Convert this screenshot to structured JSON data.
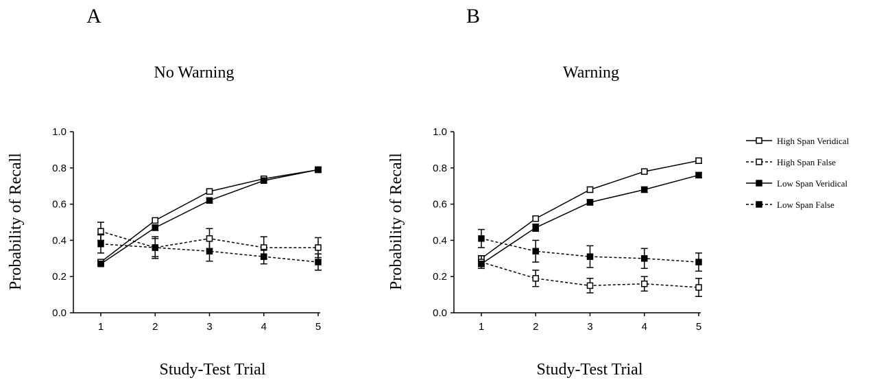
{
  "chart_data": [
    {
      "type": "line",
      "panel_letter": "A",
      "title": "No Warning",
      "xlabel": "Study-Test Trial",
      "ylabel": "Probability of Recall",
      "x": [
        1,
        2,
        3,
        4,
        5
      ],
      "xticks": [
        "1",
        "2",
        "3",
        "4",
        "5"
      ],
      "yticks": [
        "0.0",
        "0.2",
        "0.4",
        "0.6",
        "0.8",
        "1.0"
      ],
      "ylim": [
        0,
        1
      ],
      "grid": false,
      "series": [
        {
          "name": "High Span Veridical",
          "values": [
            0.28,
            0.51,
            0.67,
            0.74,
            0.79
          ],
          "err": [
            0.01,
            0.01,
            0.01,
            0.01,
            0.015
          ],
          "marker": "open-square",
          "line": "solid"
        },
        {
          "name": "High Span False",
          "values": [
            0.45,
            0.36,
            0.41,
            0.36,
            0.36
          ],
          "err": [
            0.05,
            0.05,
            0.055,
            0.06,
            0.055
          ],
          "marker": "open-square",
          "line": "dashed"
        },
        {
          "name": "Low Span Veridical",
          "values": [
            0.27,
            0.47,
            0.62,
            0.73,
            0.79
          ],
          "err": [
            0.01,
            0.015,
            0.015,
            0.01,
            0.01
          ],
          "marker": "filled-square",
          "line": "solid"
        },
        {
          "name": "Low Span False",
          "values": [
            0.38,
            0.36,
            0.34,
            0.31,
            0.28
          ],
          "err": [
            0.05,
            0.06,
            0.055,
            0.04,
            0.045
          ],
          "marker": "filled-square",
          "line": "dashed"
        }
      ]
    },
    {
      "type": "line",
      "panel_letter": "B",
      "title": "Warning",
      "xlabel": "Study-Test Trial",
      "ylabel": "Probability of Recall",
      "x": [
        1,
        2,
        3,
        4,
        5
      ],
      "xticks": [
        "1",
        "2",
        "3",
        "4",
        "5"
      ],
      "yticks": [
        "0.0",
        "0.2",
        "0.4",
        "0.6",
        "0.8",
        "1.0"
      ],
      "ylim": [
        0,
        1
      ],
      "grid": false,
      "series": [
        {
          "name": "High Span Veridical",
          "values": [
            0.3,
            0.52,
            0.68,
            0.78,
            0.84
          ],
          "err": [
            0.01,
            0.01,
            0.015,
            0.01,
            0.015
          ],
          "marker": "open-square",
          "line": "solid"
        },
        {
          "name": "High Span False",
          "values": [
            0.28,
            0.19,
            0.15,
            0.16,
            0.14
          ],
          "err": [
            0.035,
            0.045,
            0.04,
            0.04,
            0.05
          ],
          "marker": "open-square",
          "line": "dashed"
        },
        {
          "name": "Low Span Veridical",
          "values": [
            0.27,
            0.47,
            0.61,
            0.68,
            0.76
          ],
          "err": [
            0.015,
            0.02,
            0.015,
            0.015,
            0.015
          ],
          "marker": "filled-square",
          "line": "solid"
        },
        {
          "name": "Low Span False",
          "values": [
            0.41,
            0.34,
            0.31,
            0.3,
            0.28
          ],
          "err": [
            0.05,
            0.06,
            0.06,
            0.055,
            0.05
          ],
          "marker": "filled-square",
          "line": "dashed"
        }
      ]
    }
  ],
  "legend": {
    "placement": "right",
    "entries": [
      {
        "label": "High Span Veridical",
        "marker": "open-square",
        "line": "solid"
      },
      {
        "label": "High Span False",
        "marker": "open-square",
        "line": "dashed"
      },
      {
        "label": "Low Span Veridical",
        "marker": "filled-square",
        "line": "solid"
      },
      {
        "label": "Low Span False",
        "marker": "filled-square",
        "line": "dashed"
      }
    ]
  }
}
